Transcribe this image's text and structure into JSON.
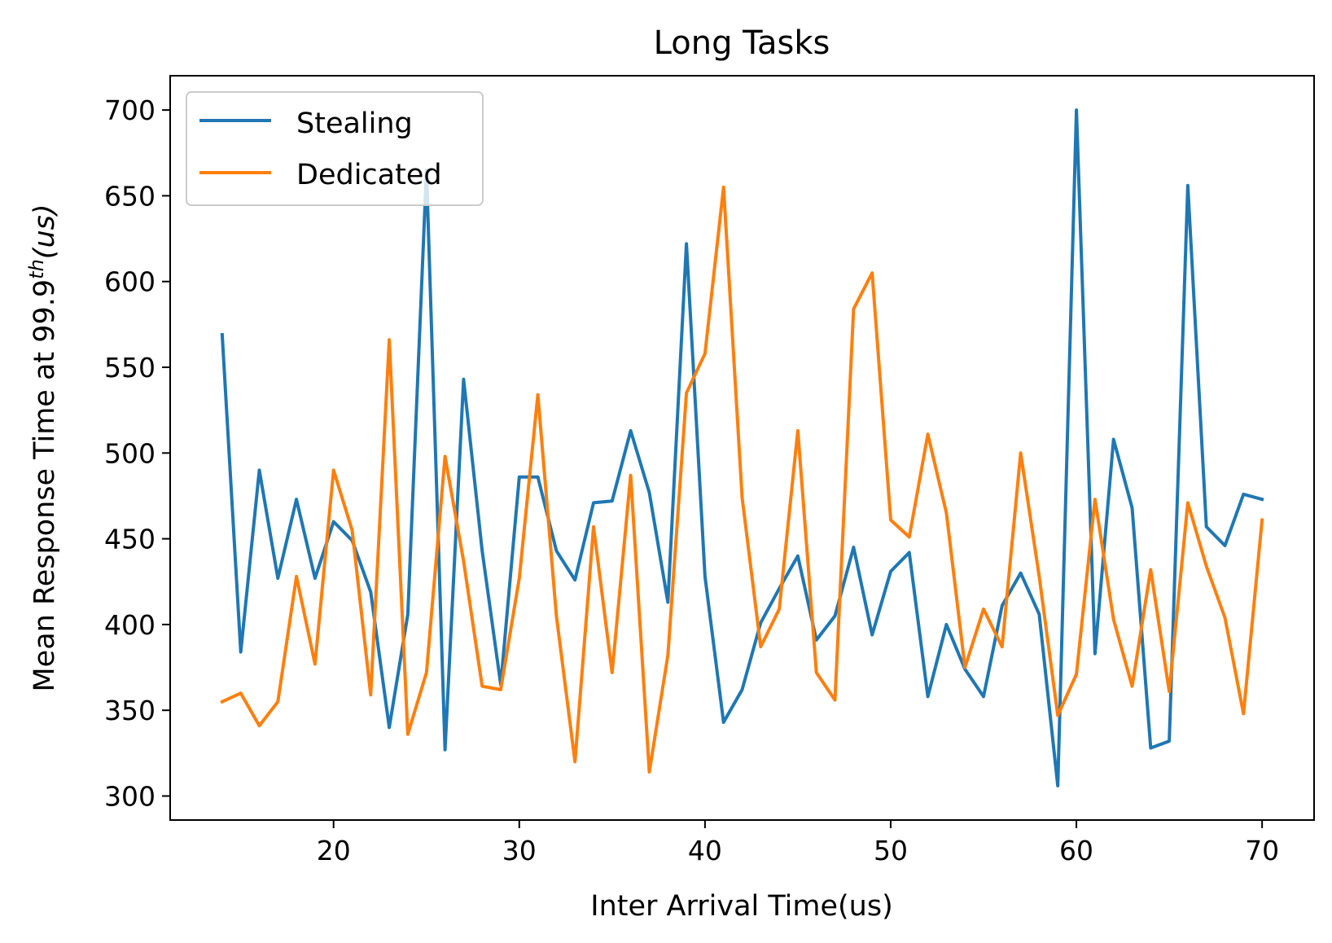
{
  "chart_data": {
    "type": "line",
    "title": "Long Tasks",
    "xlabel": "Inter Arrival Time(us)",
    "ylabel": {
      "prefix": "Mean Response Time at 99.9",
      "superscript": "th",
      "suffix": "(us)"
    },
    "xlim": [
      11.2,
      72.8
    ],
    "ylim": [
      286,
      720
    ],
    "xticks": [
      20,
      30,
      40,
      50,
      60,
      70
    ],
    "yticks": [
      300,
      350,
      400,
      450,
      500,
      550,
      600,
      650,
      700
    ],
    "grid": false,
    "legend_position": "top-left",
    "x": [
      14,
      15,
      16,
      17,
      18,
      19,
      20,
      21,
      22,
      23,
      24,
      25,
      26,
      27,
      28,
      29,
      30,
      31,
      32,
      33,
      34,
      35,
      36,
      37,
      38,
      39,
      40,
      41,
      42,
      43,
      44,
      45,
      46,
      47,
      48,
      49,
      50,
      51,
      52,
      53,
      54,
      55,
      56,
      57,
      58,
      59,
      60,
      61,
      62,
      63,
      64,
      65,
      66,
      67,
      68,
      69,
      70
    ],
    "series": [
      {
        "name": "Stealing",
        "color": "#1f77b4",
        "values": [
          569,
          384,
          490,
          427,
          473,
          427,
          460,
          449,
          419,
          340,
          406,
          665,
          327,
          543,
          443,
          365,
          486,
          486,
          443,
          426,
          471,
          472,
          513,
          477,
          413,
          622,
          428,
          343,
          362,
          401,
          421,
          440,
          391,
          405,
          445,
          394,
          431,
          442,
          358,
          400,
          374,
          358,
          411,
          430,
          406,
          306,
          700,
          383,
          508,
          468,
          328,
          332,
          656,
          457,
          446,
          476,
          473
        ]
      },
      {
        "name": "Dedicated",
        "color": "#ff7f0e",
        "values": [
          355,
          360,
          341,
          355,
          428,
          377,
          490,
          455,
          359,
          566,
          336,
          372,
          498,
          437,
          364,
          362,
          427,
          534,
          405,
          320,
          457,
          372,
          487,
          314,
          382,
          535,
          558,
          655,
          474,
          387,
          409,
          513,
          372,
          356,
          584,
          605,
          461,
          451,
          511,
          465,
          375,
          409,
          387,
          500,
          428,
          347,
          371,
          473,
          403,
          364,
          432,
          361,
          471,
          434,
          404,
          348,
          461
        ]
      }
    ]
  }
}
